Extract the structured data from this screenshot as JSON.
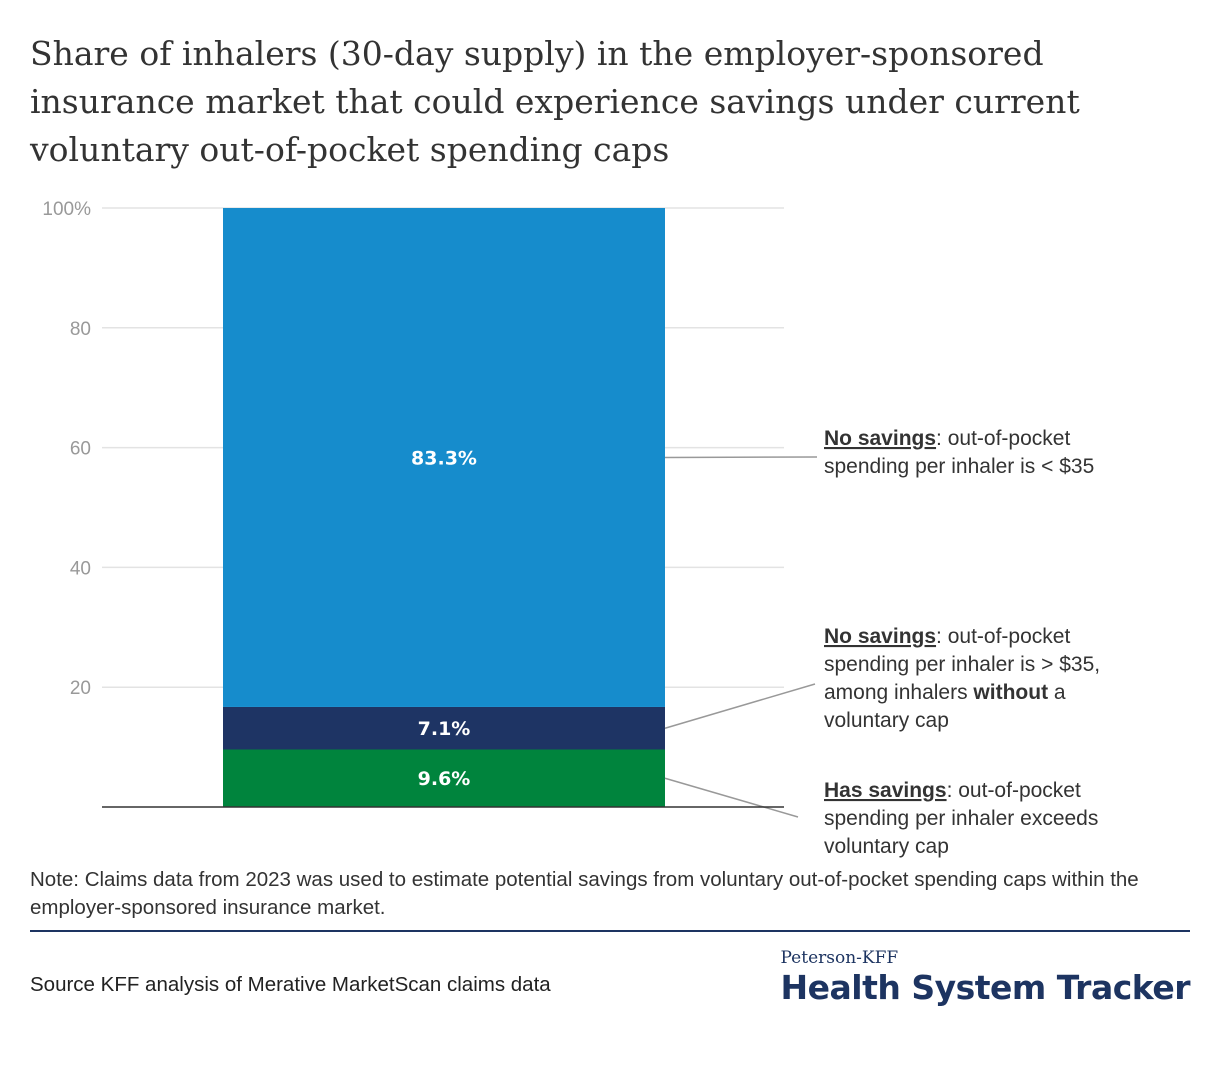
{
  "title": "Share of inhalers (30-day supply) in the employer-sponsored insurance market that could experience savings under current voluntary out-of-pocket spending caps",
  "note": "Note: Claims data from 2023 was used to estimate potential savings from voluntary out-of-pocket spending caps within the employer-sponsored insurance market.",
  "source": "Source KFF analysis of Merative MarketScan claims data",
  "logo": {
    "top": "Peterson-KFF",
    "main": "Health System Tracker"
  },
  "chart_data": {
    "type": "bar",
    "stacked": true,
    "yticks": [
      "100%",
      "80",
      "60",
      "40",
      "20"
    ],
    "ylim": [
      0,
      100
    ],
    "grid": true,
    "series": [
      {
        "value": 9.6,
        "label": "9.6%",
        "color": "#00843d",
        "legend": [
          [
            {
              "t": "Has savings",
              "s": "u"
            },
            {
              "t": ": out-of-pocket"
            }
          ],
          [
            {
              "t": "spending per inhaler exceeds"
            }
          ],
          [
            {
              "t": "voluntary cap"
            }
          ]
        ]
      },
      {
        "value": 7.1,
        "label": "7.1%",
        "color": "#1e3464",
        "legend": [
          [
            {
              "t": "No savings",
              "s": "u"
            },
            {
              "t": ": out-of-pocket"
            }
          ],
          [
            {
              "t": "spending per inhaler is > $35,"
            }
          ],
          [
            {
              "t": "among inhalers "
            },
            {
              "t": "without",
              "s": "b"
            },
            {
              "t": " a"
            }
          ],
          [
            {
              "t": "voluntary cap"
            }
          ]
        ]
      },
      {
        "value": 83.3,
        "label": "83.3%",
        "color": "#168ccc",
        "legend": [
          [
            {
              "t": "No savings",
              "s": "u"
            },
            {
              "t": ": out-of-pocket"
            }
          ],
          [
            {
              "t": "spending per inhaler is < $35"
            }
          ]
        ]
      }
    ]
  }
}
